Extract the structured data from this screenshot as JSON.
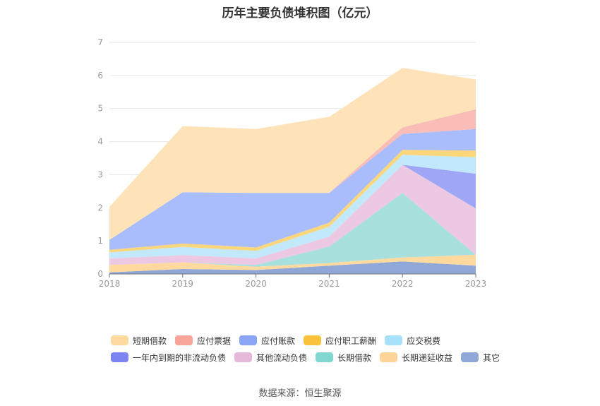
{
  "chart_data": {
    "type": "area",
    "stacked": true,
    "title": "历年主要负债堆积图（亿元）",
    "categories": [
      "2018",
      "2019",
      "2020",
      "2021",
      "2022",
      "2023"
    ],
    "y_ticks": [
      "0",
      "1",
      "2",
      "3",
      "4",
      "5",
      "6",
      "7"
    ],
    "ylim": [
      0,
      7
    ],
    "legend_position": "bottom",
    "series": [
      {
        "name": "其它",
        "color": "#8fa8d8",
        "values": [
          0.05,
          0.15,
          0.12,
          0.25,
          0.38,
          0.25
        ]
      },
      {
        "name": "长期递延收益",
        "color": "#ffd99e",
        "values": [
          0.22,
          0.2,
          0.1,
          0.08,
          0.12,
          0.33
        ]
      },
      {
        "name": "长期借款",
        "color": "#a8e0de",
        "values": [
          0.0,
          0.0,
          0.05,
          0.5,
          1.95,
          0.0
        ]
      },
      {
        "name": "其他流动负债",
        "color": "#ecc8e2",
        "values": [
          0.2,
          0.22,
          0.2,
          0.3,
          0.85,
          1.4
        ]
      },
      {
        "name": "一年内到期的非流动负债",
        "color": "#9ea6f5",
        "values": [
          0.0,
          0.0,
          0.0,
          0.0,
          0.0,
          1.05
        ]
      },
      {
        "name": "应交税费",
        "color": "#c2e8fb",
        "values": [
          0.18,
          0.25,
          0.23,
          0.3,
          0.3,
          0.5
        ]
      },
      {
        "name": "应付职工薪酬",
        "color": "#fcd67a",
        "values": [
          0.08,
          0.1,
          0.1,
          0.12,
          0.15,
          0.2
        ]
      },
      {
        "name": "应付账款",
        "color": "#a9bcfc",
        "values": [
          0.3,
          1.55,
          1.65,
          0.9,
          0.48,
          0.65
        ]
      },
      {
        "name": "应付票据",
        "color": "#fabcb6",
        "values": [
          0.0,
          0.0,
          0.0,
          0.0,
          0.2,
          0.6
        ]
      },
      {
        "name": "短期借款",
        "color": "#fee3b8",
        "values": [
          1.0,
          2.0,
          1.93,
          2.3,
          1.8,
          0.9
        ]
      }
    ]
  },
  "legend": {
    "row1": [
      {
        "label": "短期借款",
        "color": "#fdd9a0"
      },
      {
        "label": "应付票据",
        "color": "#f7a599"
      },
      {
        "label": "应付账款",
        "color": "#8aa4f7"
      },
      {
        "label": "应付职工薪酬",
        "color": "#fbc33c"
      },
      {
        "label": "应交税费",
        "color": "#a8e1fb"
      }
    ],
    "row2": [
      {
        "label": "一年内到期的非流动负债",
        "color": "#7b84f0"
      },
      {
        "label": "其他流动负债",
        "color": "#e6b8d9"
      },
      {
        "label": "长期借款",
        "color": "#82d6d2"
      },
      {
        "label": "长期递延收益",
        "color": "#fdd59a"
      },
      {
        "label": "其它",
        "color": "#8fa8d8"
      }
    ]
  },
  "source": "数据来源：恒生聚源"
}
